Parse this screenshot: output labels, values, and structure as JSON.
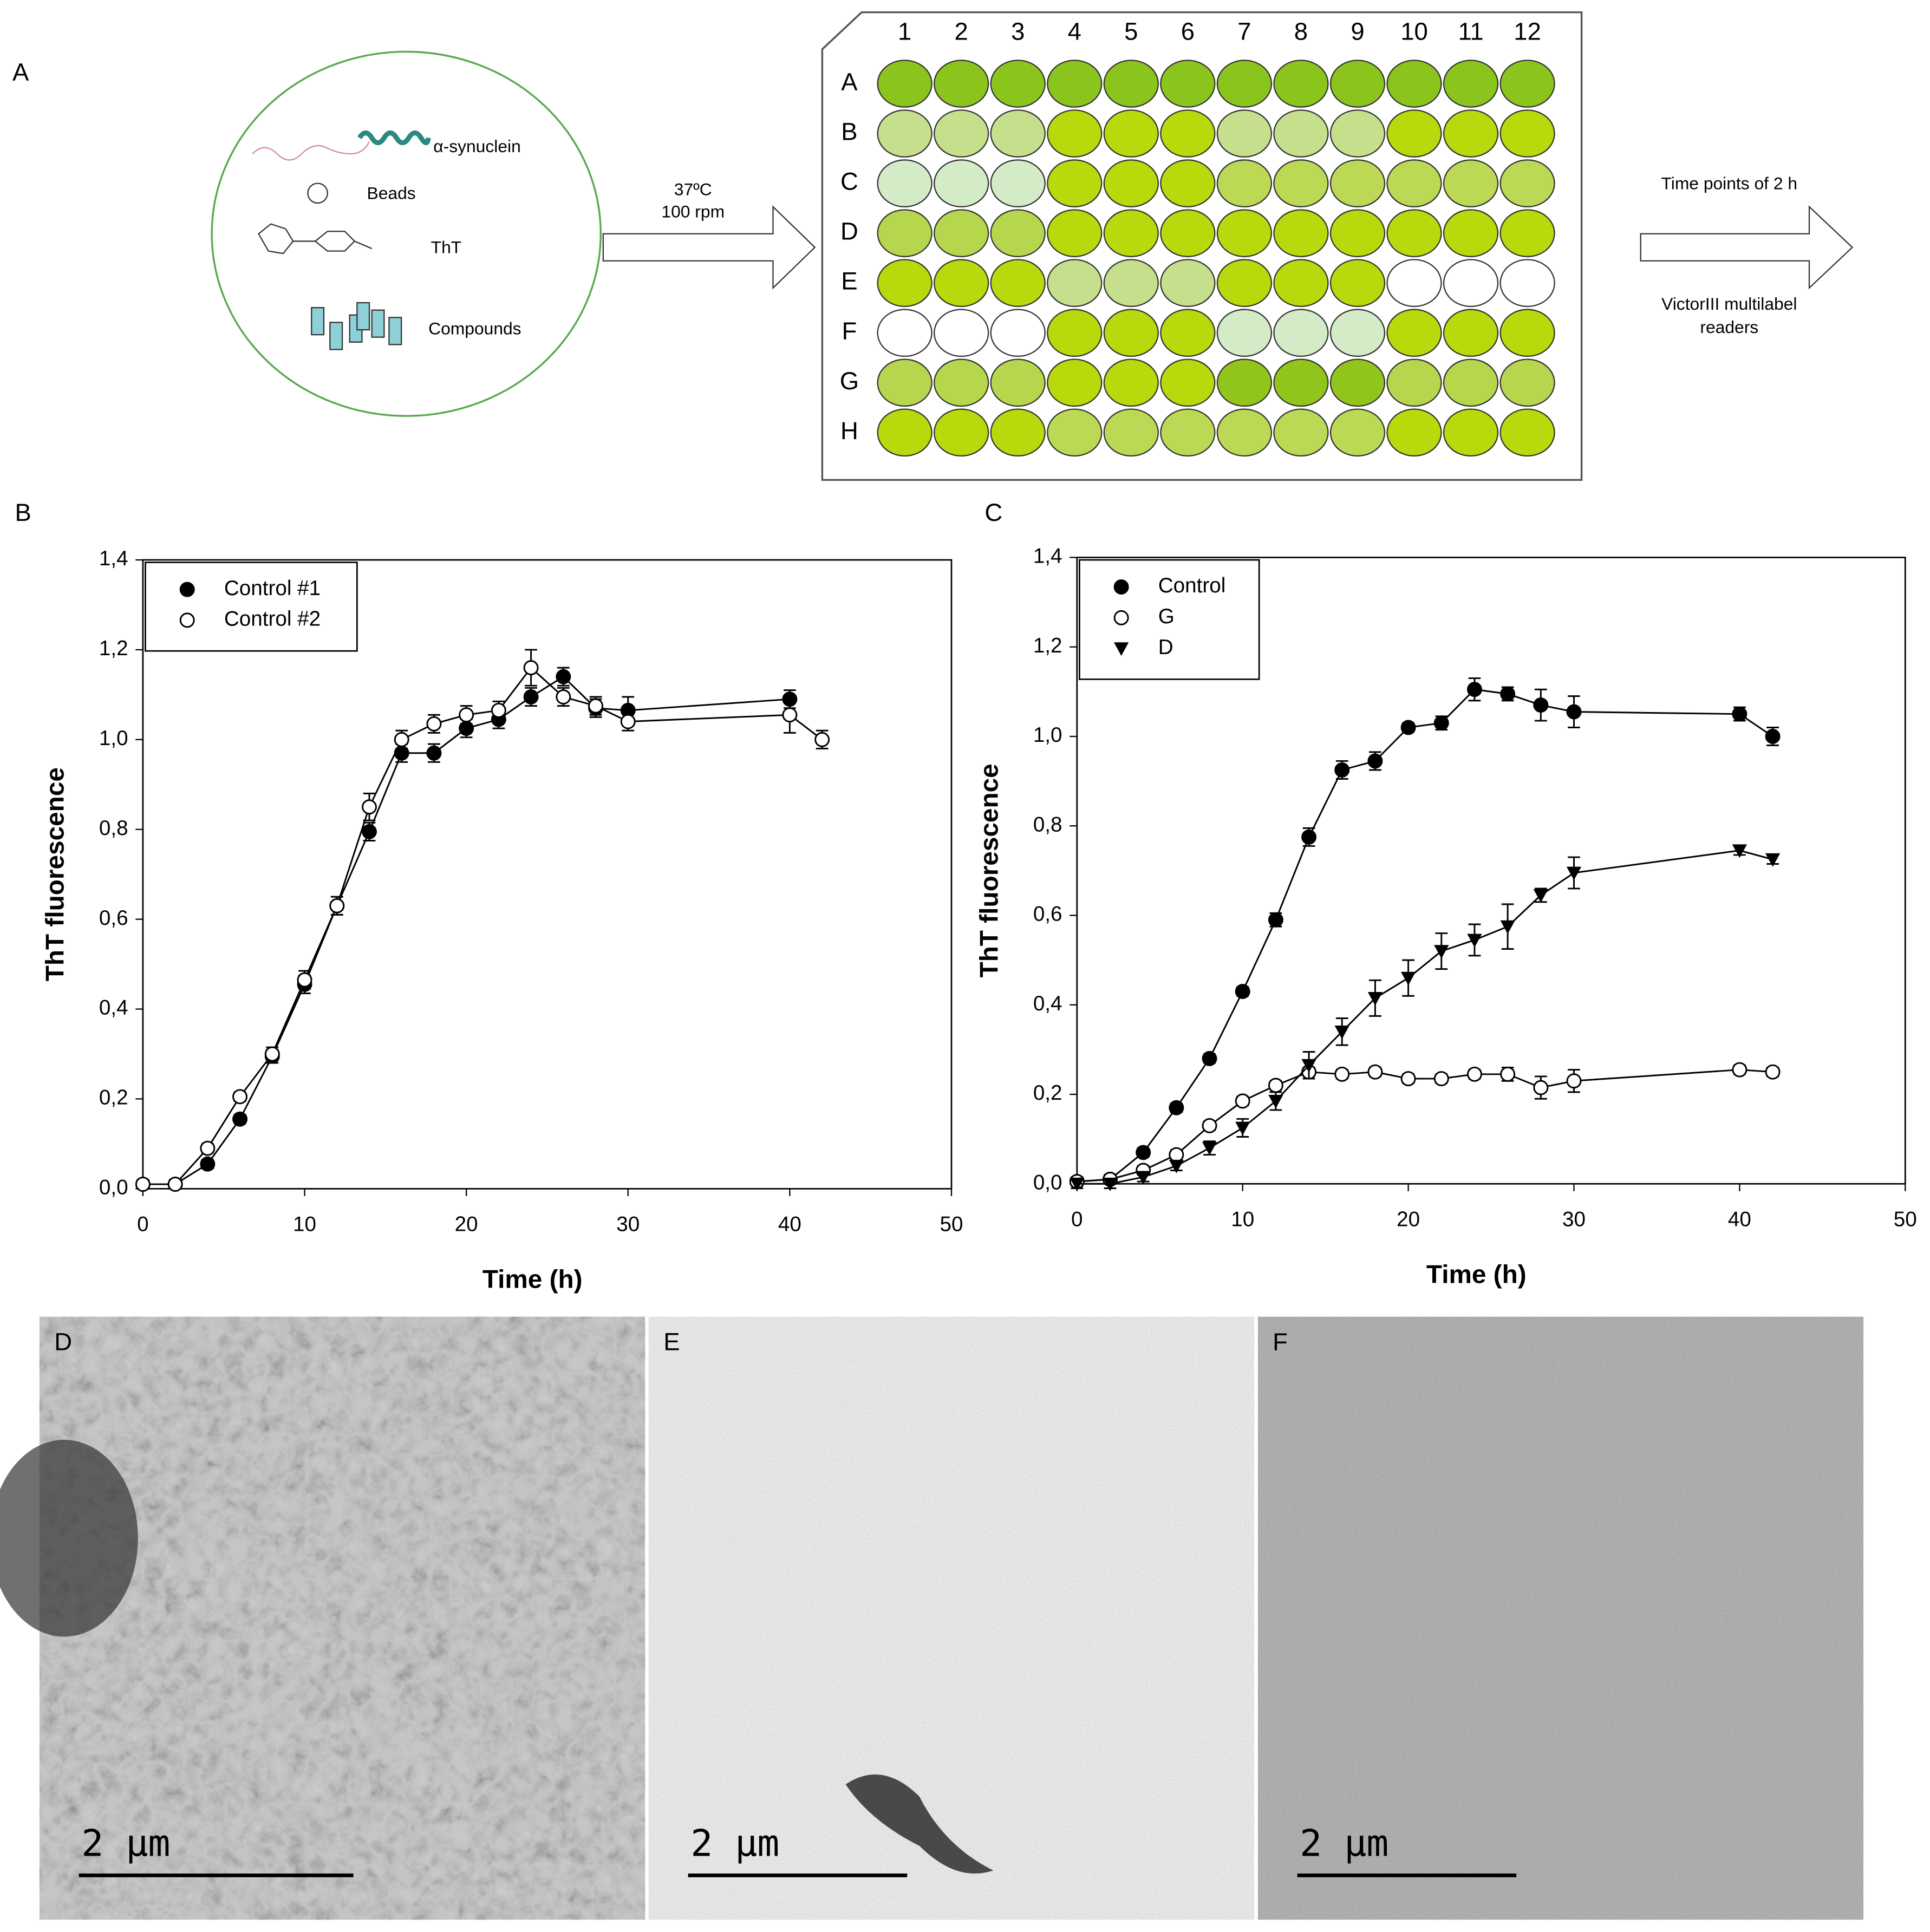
{
  "panel_a": {
    "label": "A",
    "contents": [
      "α-synuclein",
      "Beads",
      "ThT",
      "Compounds"
    ],
    "condition": [
      "37ºC",
      "100 rpm"
    ],
    "columns": [
      "1",
      "2",
      "3",
      "4",
      "5",
      "6",
      "7",
      "8",
      "9",
      "10",
      "11",
      "12"
    ],
    "rows": [
      "A",
      "B",
      "C",
      "D",
      "E",
      "F",
      "G",
      "H"
    ],
    "well_colors": [
      [
        "#8cc41e",
        "#8cc41e",
        "#8cc41e",
        "#8cc41e",
        "#8cc41e",
        "#8cc41e",
        "#8cc41e",
        "#8cc41e",
        "#8cc41e",
        "#8cc41e",
        "#8cc41e",
        "#8cc41e"
      ],
      [
        "#c6df8c",
        "#c6df8c",
        "#c6df8c",
        "#b8d90c",
        "#b8d90c",
        "#b8d90c",
        "#c6df8c",
        "#c6df8c",
        "#c6df8c",
        "#b8d90c",
        "#b8d90c",
        "#b8d90c"
      ],
      [
        "#d4ebc8",
        "#d4ebc8",
        "#d4ebc8",
        "#b8d90c",
        "#b8d90c",
        "#b8d90c",
        "#bcd955",
        "#bcd955",
        "#bcd955",
        "#bcd955",
        "#bcd955",
        "#bcd955"
      ],
      [
        "#b6d64e",
        "#b6d64e",
        "#b6d64e",
        "#b8d90c",
        "#b8d90c",
        "#b8d90c",
        "#b8d90c",
        "#b8d90c",
        "#b8d90c",
        "#b8d90c",
        "#b8d90c",
        "#b8d90c"
      ],
      [
        "#b8d90c",
        "#b8d90c",
        "#b8d90c",
        "#c6df8c",
        "#c6df8c",
        "#c6df8c",
        "#b8d90c",
        "#b8d90c",
        "#b8d90c",
        "#ffffff",
        "#ffffff",
        "#ffffff"
      ],
      [
        "#ffffff",
        "#ffffff",
        "#ffffff",
        "#b8d90c",
        "#b8d90c",
        "#b8d90c",
        "#d4ebc8",
        "#d4ebc8",
        "#d4ebc8",
        "#b8d90c",
        "#b8d90c",
        "#b8d90c"
      ],
      [
        "#b6d64e",
        "#b6d64e",
        "#b6d64e",
        "#b8d90c",
        "#b8d90c",
        "#b8d90c",
        "#92c51c",
        "#92c51c",
        "#92c51c",
        "#b6d64e",
        "#b6d64e",
        "#b6d64e"
      ],
      [
        "#b8d90c",
        "#b8d90c",
        "#b8d90c",
        "#bcd955",
        "#bcd955",
        "#bcd955",
        "#bcd955",
        "#bcd955",
        "#bcd955",
        "#b8d90c",
        "#b8d90c",
        "#b8d90c"
      ]
    ],
    "readout": [
      "Time points of 2 h",
      "VictorIII multilabel",
      "readers"
    ]
  },
  "chart_data": [
    {
      "type": "scatter",
      "label": "B",
      "xlabel": "Time (h)",
      "ylabel": "ThT fluorescence",
      "xlim": [
        0,
        50
      ],
      "xticks": [
        0,
        10,
        20,
        30,
        40,
        50
      ],
      "ylim": [
        0,
        1.4
      ],
      "yticks": [
        {
          "value": 0,
          "label": "0,0"
        },
        {
          "value": 0.2,
          "label": "0,2"
        },
        {
          "value": 0.4,
          "label": "0,4"
        },
        {
          "value": 0.6,
          "label": "0,6"
        },
        {
          "value": 0.8,
          "label": "0,8"
        },
        {
          "value": 1.0,
          "label": "1,0"
        },
        {
          "value": 1.2,
          "label": "1,2"
        },
        {
          "value": 1.4,
          "label": "1,4"
        }
      ],
      "legend": "top-left",
      "series": [
        {
          "name": "Control #1",
          "marker": "filled-circle",
          "color": "#000000",
          "x": [
            0,
            2,
            4,
            6,
            8,
            10,
            12,
            14,
            16,
            18,
            20,
            22,
            24,
            26,
            28,
            30,
            40
          ],
          "values": [
            0.01,
            0.01,
            0.055,
            0.155,
            0.295,
            0.455,
            0.63,
            0.795,
            0.97,
            0.97,
            1.025,
            1.045,
            1.095,
            1.14,
            1.07,
            1.065,
            1.09
          ],
          "errors": [
            0.01,
            0.01,
            0.01,
            0.01,
            0.015,
            0.02,
            0.02,
            0.02,
            0.02,
            0.02,
            0.02,
            0.02,
            0.02,
            0.02,
            0.02,
            0.03,
            0.02
          ]
        },
        {
          "name": "Control #2",
          "marker": "open-circle",
          "color": "#000000",
          "x": [
            0,
            2,
            4,
            6,
            8,
            10,
            12,
            14,
            16,
            18,
            20,
            22,
            24,
            26,
            28,
            30,
            40,
            42
          ],
          "values": [
            0.01,
            0.01,
            0.09,
            0.205,
            0.3,
            0.465,
            0.63,
            0.85,
            1.0,
            1.035,
            1.055,
            1.065,
            1.16,
            1.095,
            1.075,
            1.04,
            1.055,
            1.0
          ],
          "errors": [
            0.01,
            0.01,
            0.01,
            0.01,
            0.015,
            0.02,
            0.02,
            0.03,
            0.02,
            0.02,
            0.02,
            0.02,
            0.04,
            0.02,
            0.02,
            0.02,
            0.04,
            0.02
          ]
        }
      ]
    },
    {
      "type": "scatter",
      "label": "C",
      "xlabel": "Time (h)",
      "ylabel": "ThT fluorescence",
      "xlim": [
        0,
        50
      ],
      "xticks": [
        0,
        10,
        20,
        30,
        40,
        50
      ],
      "ylim": [
        0,
        1.4
      ],
      "yticks": [
        {
          "value": 0,
          "label": "0,0"
        },
        {
          "value": 0.2,
          "label": "0,2"
        },
        {
          "value": 0.4,
          "label": "0,4"
        },
        {
          "value": 0.6,
          "label": "0,6"
        },
        {
          "value": 0.8,
          "label": "0,8"
        },
        {
          "value": 1.0,
          "label": "1,0"
        },
        {
          "value": 1.2,
          "label": "1,2"
        },
        {
          "value": 1.4,
          "label": "1,4"
        }
      ],
      "legend": "top-left",
      "series": [
        {
          "name": "Control",
          "marker": "filled-circle",
          "color": "#000000",
          "x": [
            0,
            2,
            4,
            6,
            8,
            10,
            12,
            14,
            16,
            18,
            20,
            22,
            24,
            26,
            28,
            30,
            40,
            42
          ],
          "values": [
            0.005,
            0.01,
            0.07,
            0.17,
            0.28,
            0.43,
            0.59,
            0.775,
            0.925,
            0.945,
            1.02,
            1.03,
            1.105,
            1.095,
            1.07,
            1.055,
            1.05,
            1.0
          ],
          "errors": [
            0.01,
            0.01,
            0.01,
            0.01,
            0.01,
            0.01,
            0.015,
            0.02,
            0.02,
            0.02,
            0.01,
            0.015,
            0.025,
            0.015,
            0.035,
            0.035,
            0.015,
            0.02
          ]
        },
        {
          "name": "G",
          "marker": "open-circle",
          "color": "#000000",
          "x": [
            0,
            2,
            4,
            6,
            8,
            10,
            12,
            14,
            16,
            18,
            20,
            22,
            24,
            26,
            28,
            30,
            40,
            42
          ],
          "values": [
            0.005,
            0.01,
            0.03,
            0.065,
            0.13,
            0.185,
            0.22,
            0.25,
            0.245,
            0.25,
            0.235,
            0.235,
            0.245,
            0.245,
            0.215,
            0.23,
            0.255,
            0.25
          ],
          "errors": [
            0.01,
            0.01,
            0.01,
            0.01,
            0.01,
            0.01,
            0.01,
            0.01,
            0.01,
            0.01,
            0.01,
            0.01,
            0.01,
            0.015,
            0.025,
            0.025,
            0.01,
            0.01
          ]
        },
        {
          "name": "D",
          "marker": "triangle",
          "color": "#000000",
          "x": [
            0,
            2,
            4,
            6,
            8,
            10,
            12,
            14,
            16,
            18,
            20,
            22,
            24,
            26,
            28,
            30,
            40,
            42
          ],
          "values": [
            0.0,
            0.0,
            0.015,
            0.04,
            0.08,
            0.125,
            0.185,
            0.265,
            0.34,
            0.415,
            0.46,
            0.52,
            0.545,
            0.575,
            0.645,
            0.695,
            0.745,
            0.725
          ],
          "errors": [
            0.01,
            0.01,
            0.01,
            0.01,
            0.015,
            0.02,
            0.02,
            0.03,
            0.03,
            0.04,
            0.04,
            0.04,
            0.035,
            0.05,
            0.015,
            0.035,
            0.01,
            0.01
          ]
        }
      ]
    }
  ],
  "micrographs": [
    {
      "label": "D",
      "scale": "2 µm"
    },
    {
      "label": "E",
      "scale": "2 µm"
    },
    {
      "label": "F",
      "scale": "2 µm"
    }
  ]
}
